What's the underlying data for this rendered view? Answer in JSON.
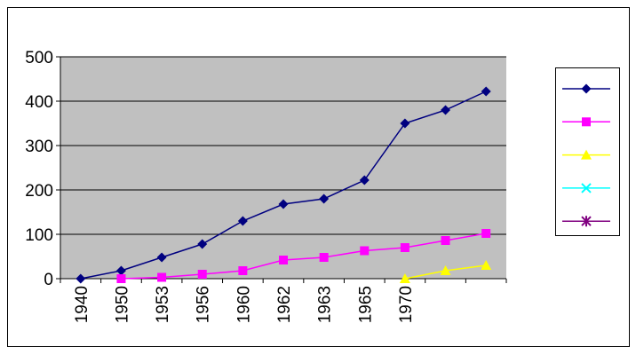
{
  "chart_data": {
    "type": "line",
    "categories": [
      "1940",
      "1950",
      "1953",
      "1956",
      "1960",
      "1962",
      "1963",
      "1965",
      "1970",
      null,
      null
    ],
    "series": [
      {
        "color": "#000080",
        "marker": "diamond",
        "values": [
          0,
          18,
          48,
          78,
          130,
          168,
          180,
          222,
          350,
          380,
          422
        ]
      },
      {
        "color": "#ff00ff",
        "marker": "square",
        "values": [
          null,
          0,
          3,
          10,
          18,
          42,
          48,
          63,
          70,
          86,
          102
        ]
      },
      {
        "color": "#ffff00",
        "marker": "triangle",
        "values": [
          null,
          null,
          null,
          null,
          null,
          null,
          null,
          null,
          0,
          18,
          30
        ]
      },
      {
        "color": "#00ffff",
        "marker": "x",
        "values": [
          null,
          null,
          null,
          null,
          null,
          null,
          null,
          null,
          null,
          null,
          null
        ]
      },
      {
        "color": "#800080",
        "marker": "star",
        "values": [
          null,
          null,
          null,
          null,
          null,
          null,
          null,
          null,
          null,
          null,
          null
        ]
      }
    ],
    "ylim": [
      0,
      500
    ],
    "yticks": [
      0,
      100,
      200,
      300,
      400,
      500
    ],
    "grid": true,
    "legend": "right"
  }
}
